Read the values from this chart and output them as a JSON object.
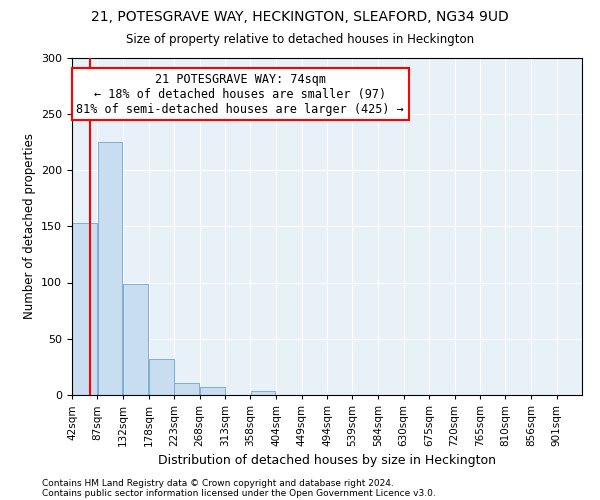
{
  "title": "21, POTESGRAVE WAY, HECKINGTON, SLEAFORD, NG34 9UD",
  "subtitle": "Size of property relative to detached houses in Heckington",
  "xlabel": "Distribution of detached houses by size in Heckington",
  "ylabel": "Number of detached properties",
  "bar_color": "#c9ddf0",
  "bar_edge_color": "#7bafd4",
  "background_color": "#e8f0f8",
  "bin_edges": [
    42,
    87,
    132,
    178,
    223,
    268,
    313,
    358,
    404,
    449,
    494,
    539,
    584,
    630,
    675,
    720,
    765,
    810,
    856,
    901,
    946
  ],
  "bar_heights": [
    153,
    225,
    99,
    32,
    11,
    7,
    0,
    4,
    0,
    0,
    0,
    0,
    0,
    0,
    0,
    0,
    0,
    0,
    0,
    0
  ],
  "property_size": 74,
  "red_line_x": 74,
  "annotation_line1": "21 POTESGRAVE WAY: 74sqm",
  "annotation_line2": "← 18% of detached houses are smaller (97)",
  "annotation_line3": "81% of semi-detached houses are larger (425) →",
  "annotation_box_color": "white",
  "annotation_box_edge": "red",
  "footnote1": "Contains HM Land Registry data © Crown copyright and database right 2024.",
  "footnote2": "Contains public sector information licensed under the Open Government Licence v3.0.",
  "ylim": [
    0,
    300
  ],
  "yticks": [
    0,
    50,
    100,
    150,
    200,
    250,
    300
  ]
}
